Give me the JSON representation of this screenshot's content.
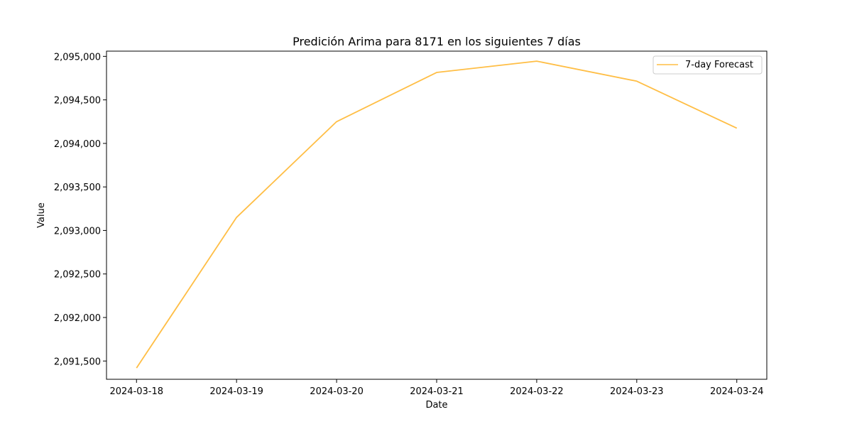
{
  "chart_data": {
    "type": "line",
    "title": "Predición Arima para 8171 en los siguientes 7 días",
    "xlabel": "Date",
    "ylabel": "Value",
    "x": [
      "2024-03-18",
      "2024-03-19",
      "2024-03-20",
      "2024-03-21",
      "2024-03-22",
      "2024-03-23",
      "2024-03-24"
    ],
    "series": [
      {
        "name": "7-day Forecast",
        "color": "#ffbe45",
        "values": [
          2091420,
          2093150,
          2094250,
          2094815,
          2094945,
          2094715,
          2094175
        ]
      }
    ],
    "ylim": [
      2091290,
      2095060
    ],
    "yticks": [
      2091500,
      2092000,
      2092500,
      2093000,
      2093500,
      2094000,
      2094500,
      2095000
    ],
    "ytick_labels": [
      "2,091,500",
      "2,092,000",
      "2,092,500",
      "2,093,000",
      "2,093,500",
      "2,094,000",
      "2,094,500",
      "2,095,000"
    ],
    "xtick_labels": [
      "2024-03-18",
      "2024-03-19",
      "2024-03-20",
      "2024-03-21",
      "2024-03-22",
      "2024-03-23",
      "2024-03-24"
    ],
    "grid": false,
    "legend_position": "top-right"
  }
}
